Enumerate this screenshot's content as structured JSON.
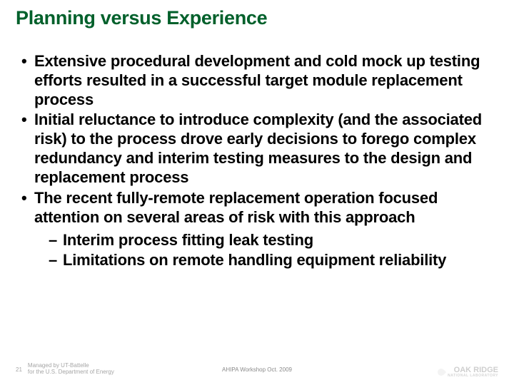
{
  "title": "Planning versus Experience",
  "title_color": "#00602b",
  "title_fontsize": 27,
  "body_fontsize": 22,
  "body_color": "#000000",
  "background_color": "#ffffff",
  "bullets": [
    "Extensive procedural development and cold mock up testing efforts resulted in a successful target module replacement process",
    "Initial reluctance to introduce complexity (and the associated risk) to the process drove early decisions to forego complex redundancy and interim testing measures to the design and replacement process",
    "The recent fully-remote replacement operation focused attention on several areas of risk with this approach"
  ],
  "sub_bullets": [
    "Interim process fitting leak testing",
    "Limitations on remote handling equipment reliability"
  ],
  "footer": {
    "page_number": "21",
    "managed_line1": "Managed by UT-Battelle",
    "managed_line2": "for the U.S. Department of Energy",
    "center": "AHIPA Workshop Oct. 2009",
    "logo_main": "OAK RIDGE",
    "logo_sub": "NATIONAL LABORATORY",
    "footer_color": "#a6a6a6"
  }
}
